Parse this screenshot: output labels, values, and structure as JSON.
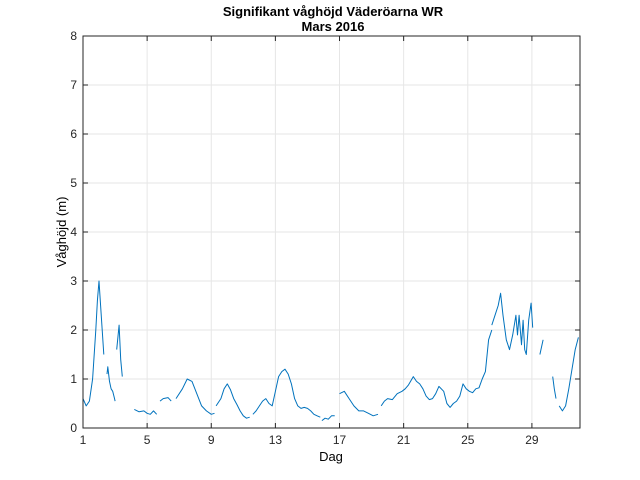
{
  "chart_data": {
    "type": "line",
    "title": "Signifikant våghöjd Väderöarna WR",
    "subtitle": "Mars 2016",
    "xlabel": "Dag",
    "ylabel": "Våghöjd (m)",
    "xlim": [
      1,
      32
    ],
    "ylim": [
      0,
      8
    ],
    "xticks": [
      1,
      5,
      9,
      13,
      17,
      21,
      25,
      29
    ],
    "yticks": [
      0,
      1,
      2,
      3,
      4,
      5,
      6,
      7,
      8
    ],
    "grid": true,
    "legend": "none",
    "series": [
      {
        "color": "#0072BD",
        "segments": [
          [
            [
              1.0,
              0.6
            ],
            [
              1.2,
              0.45
            ],
            [
              1.4,
              0.55
            ],
            [
              1.6,
              1.0
            ],
            [
              1.8,
              2.0
            ],
            [
              1.9,
              2.6
            ],
            [
              2.0,
              3.0
            ],
            [
              2.1,
              2.5
            ],
            [
              2.2,
              2.0
            ],
            [
              2.3,
              1.5
            ]
          ],
          [
            [
              2.5,
              1.1
            ],
            [
              2.55,
              1.25
            ],
            [
              2.65,
              0.95
            ],
            [
              2.75,
              0.8
            ],
            [
              2.85,
              0.75
            ],
            [
              2.95,
              0.62
            ],
            [
              3.0,
              0.55
            ]
          ],
          [
            [
              3.1,
              1.6
            ],
            [
              3.25,
              2.1
            ],
            [
              3.35,
              1.4
            ],
            [
              3.45,
              1.05
            ]
          ],
          [
            [
              4.2,
              0.38
            ],
            [
              4.5,
              0.33
            ],
            [
              4.8,
              0.35
            ],
            [
              5.0,
              0.3
            ],
            [
              5.2,
              0.28
            ],
            [
              5.4,
              0.35
            ],
            [
              5.6,
              0.28
            ]
          ],
          [
            [
              5.8,
              0.55
            ],
            [
              6.0,
              0.6
            ],
            [
              6.3,
              0.62
            ],
            [
              6.5,
              0.55
            ]
          ],
          [
            [
              6.8,
              0.6
            ],
            [
              7.2,
              0.8
            ],
            [
              7.5,
              1.0
            ],
            [
              7.8,
              0.95
            ],
            [
              8.1,
              0.7
            ],
            [
              8.4,
              0.45
            ],
            [
              8.7,
              0.35
            ],
            [
              9.0,
              0.28
            ],
            [
              9.2,
              0.3
            ]
          ],
          [
            [
              9.3,
              0.45
            ],
            [
              9.6,
              0.6
            ],
            [
              9.8,
              0.8
            ],
            [
              10.0,
              0.9
            ],
            [
              10.2,
              0.78
            ],
            [
              10.4,
              0.6
            ],
            [
              10.6,
              0.48
            ],
            [
              10.8,
              0.35
            ],
            [
              11.0,
              0.25
            ],
            [
              11.2,
              0.2
            ],
            [
              11.4,
              0.22
            ]
          ],
          [
            [
              11.6,
              0.28
            ],
            [
              11.8,
              0.35
            ],
            [
              12.0,
              0.45
            ],
            [
              12.2,
              0.55
            ],
            [
              12.4,
              0.6
            ],
            [
              12.6,
              0.5
            ],
            [
              12.8,
              0.45
            ],
            [
              13.0,
              0.75
            ],
            [
              13.2,
              1.05
            ],
            [
              13.4,
              1.15
            ],
            [
              13.6,
              1.2
            ],
            [
              13.8,
              1.1
            ],
            [
              14.0,
              0.9
            ],
            [
              14.2,
              0.6
            ],
            [
              14.4,
              0.45
            ],
            [
              14.6,
              0.4
            ],
            [
              14.8,
              0.42
            ],
            [
              15.0,
              0.4
            ],
            [
              15.2,
              0.35
            ],
            [
              15.4,
              0.28
            ],
            [
              15.6,
              0.25
            ],
            [
              15.8,
              0.22
            ]
          ],
          [
            [
              15.9,
              0.15
            ],
            [
              16.1,
              0.2
            ],
            [
              16.3,
              0.18
            ],
            [
              16.5,
              0.25
            ],
            [
              16.7,
              0.25
            ]
          ],
          [
            [
              17.0,
              0.7
            ],
            [
              17.3,
              0.75
            ],
            [
              17.6,
              0.6
            ],
            [
              17.9,
              0.45
            ],
            [
              18.2,
              0.35
            ],
            [
              18.5,
              0.35
            ],
            [
              18.8,
              0.3
            ],
            [
              19.1,
              0.25
            ],
            [
              19.4,
              0.28
            ]
          ],
          [
            [
              19.6,
              0.45
            ],
            [
              19.8,
              0.55
            ],
            [
              20.0,
              0.6
            ],
            [
              20.3,
              0.58
            ],
            [
              20.6,
              0.7
            ],
            [
              20.9,
              0.75
            ],
            [
              21.1,
              0.8
            ],
            [
              21.3,
              0.88
            ],
            [
              21.6,
              1.05
            ],
            [
              21.8,
              0.95
            ],
            [
              22.0,
              0.9
            ],
            [
              22.2,
              0.8
            ],
            [
              22.4,
              0.65
            ],
            [
              22.6,
              0.58
            ],
            [
              22.8,
              0.6
            ],
            [
              23.0,
              0.7
            ],
            [
              23.2,
              0.85
            ],
            [
              23.5,
              0.75
            ],
            [
              23.7,
              0.5
            ],
            [
              23.9,
              0.42
            ],
            [
              24.1,
              0.5
            ],
            [
              24.3,
              0.55
            ],
            [
              24.5,
              0.65
            ],
            [
              24.7,
              0.9
            ],
            [
              24.9,
              0.8
            ],
            [
              25.1,
              0.75
            ],
            [
              25.3,
              0.72
            ],
            [
              25.5,
              0.8
            ],
            [
              25.7,
              0.82
            ],
            [
              25.9,
              1.0
            ],
            [
              26.1,
              1.15
            ],
            [
              26.3,
              1.8
            ],
            [
              26.5,
              2.0
            ]
          ],
          [
            [
              26.5,
              2.1
            ],
            [
              26.7,
              2.3
            ],
            [
              26.9,
              2.5
            ],
            [
              27.05,
              2.75
            ],
            [
              27.2,
              2.3
            ],
            [
              27.4,
              1.8
            ],
            [
              27.6,
              1.6
            ],
            [
              27.8,
              1.9
            ],
            [
              28.0,
              2.3
            ],
            [
              28.1,
              1.9
            ],
            [
              28.2,
              2.3
            ],
            [
              28.35,
              1.7
            ],
            [
              28.45,
              2.2
            ],
            [
              28.55,
              1.6
            ],
            [
              28.65,
              1.5
            ],
            [
              28.8,
              2.2
            ],
            [
              28.95,
              2.55
            ],
            [
              29.05,
              2.05
            ]
          ],
          [
            [
              29.5,
              1.5
            ],
            [
              29.6,
              1.65
            ],
            [
              29.7,
              1.8
            ]
          ],
          [
            [
              30.3,
              1.05
            ],
            [
              30.4,
              0.8
            ],
            [
              30.5,
              0.6
            ]
          ],
          [
            [
              30.7,
              0.45
            ],
            [
              30.9,
              0.35
            ],
            [
              31.1,
              0.45
            ],
            [
              31.3,
              0.8
            ],
            [
              31.5,
              1.2
            ],
            [
              31.7,
              1.6
            ],
            [
              31.9,
              1.85
            ]
          ]
        ]
      }
    ]
  }
}
